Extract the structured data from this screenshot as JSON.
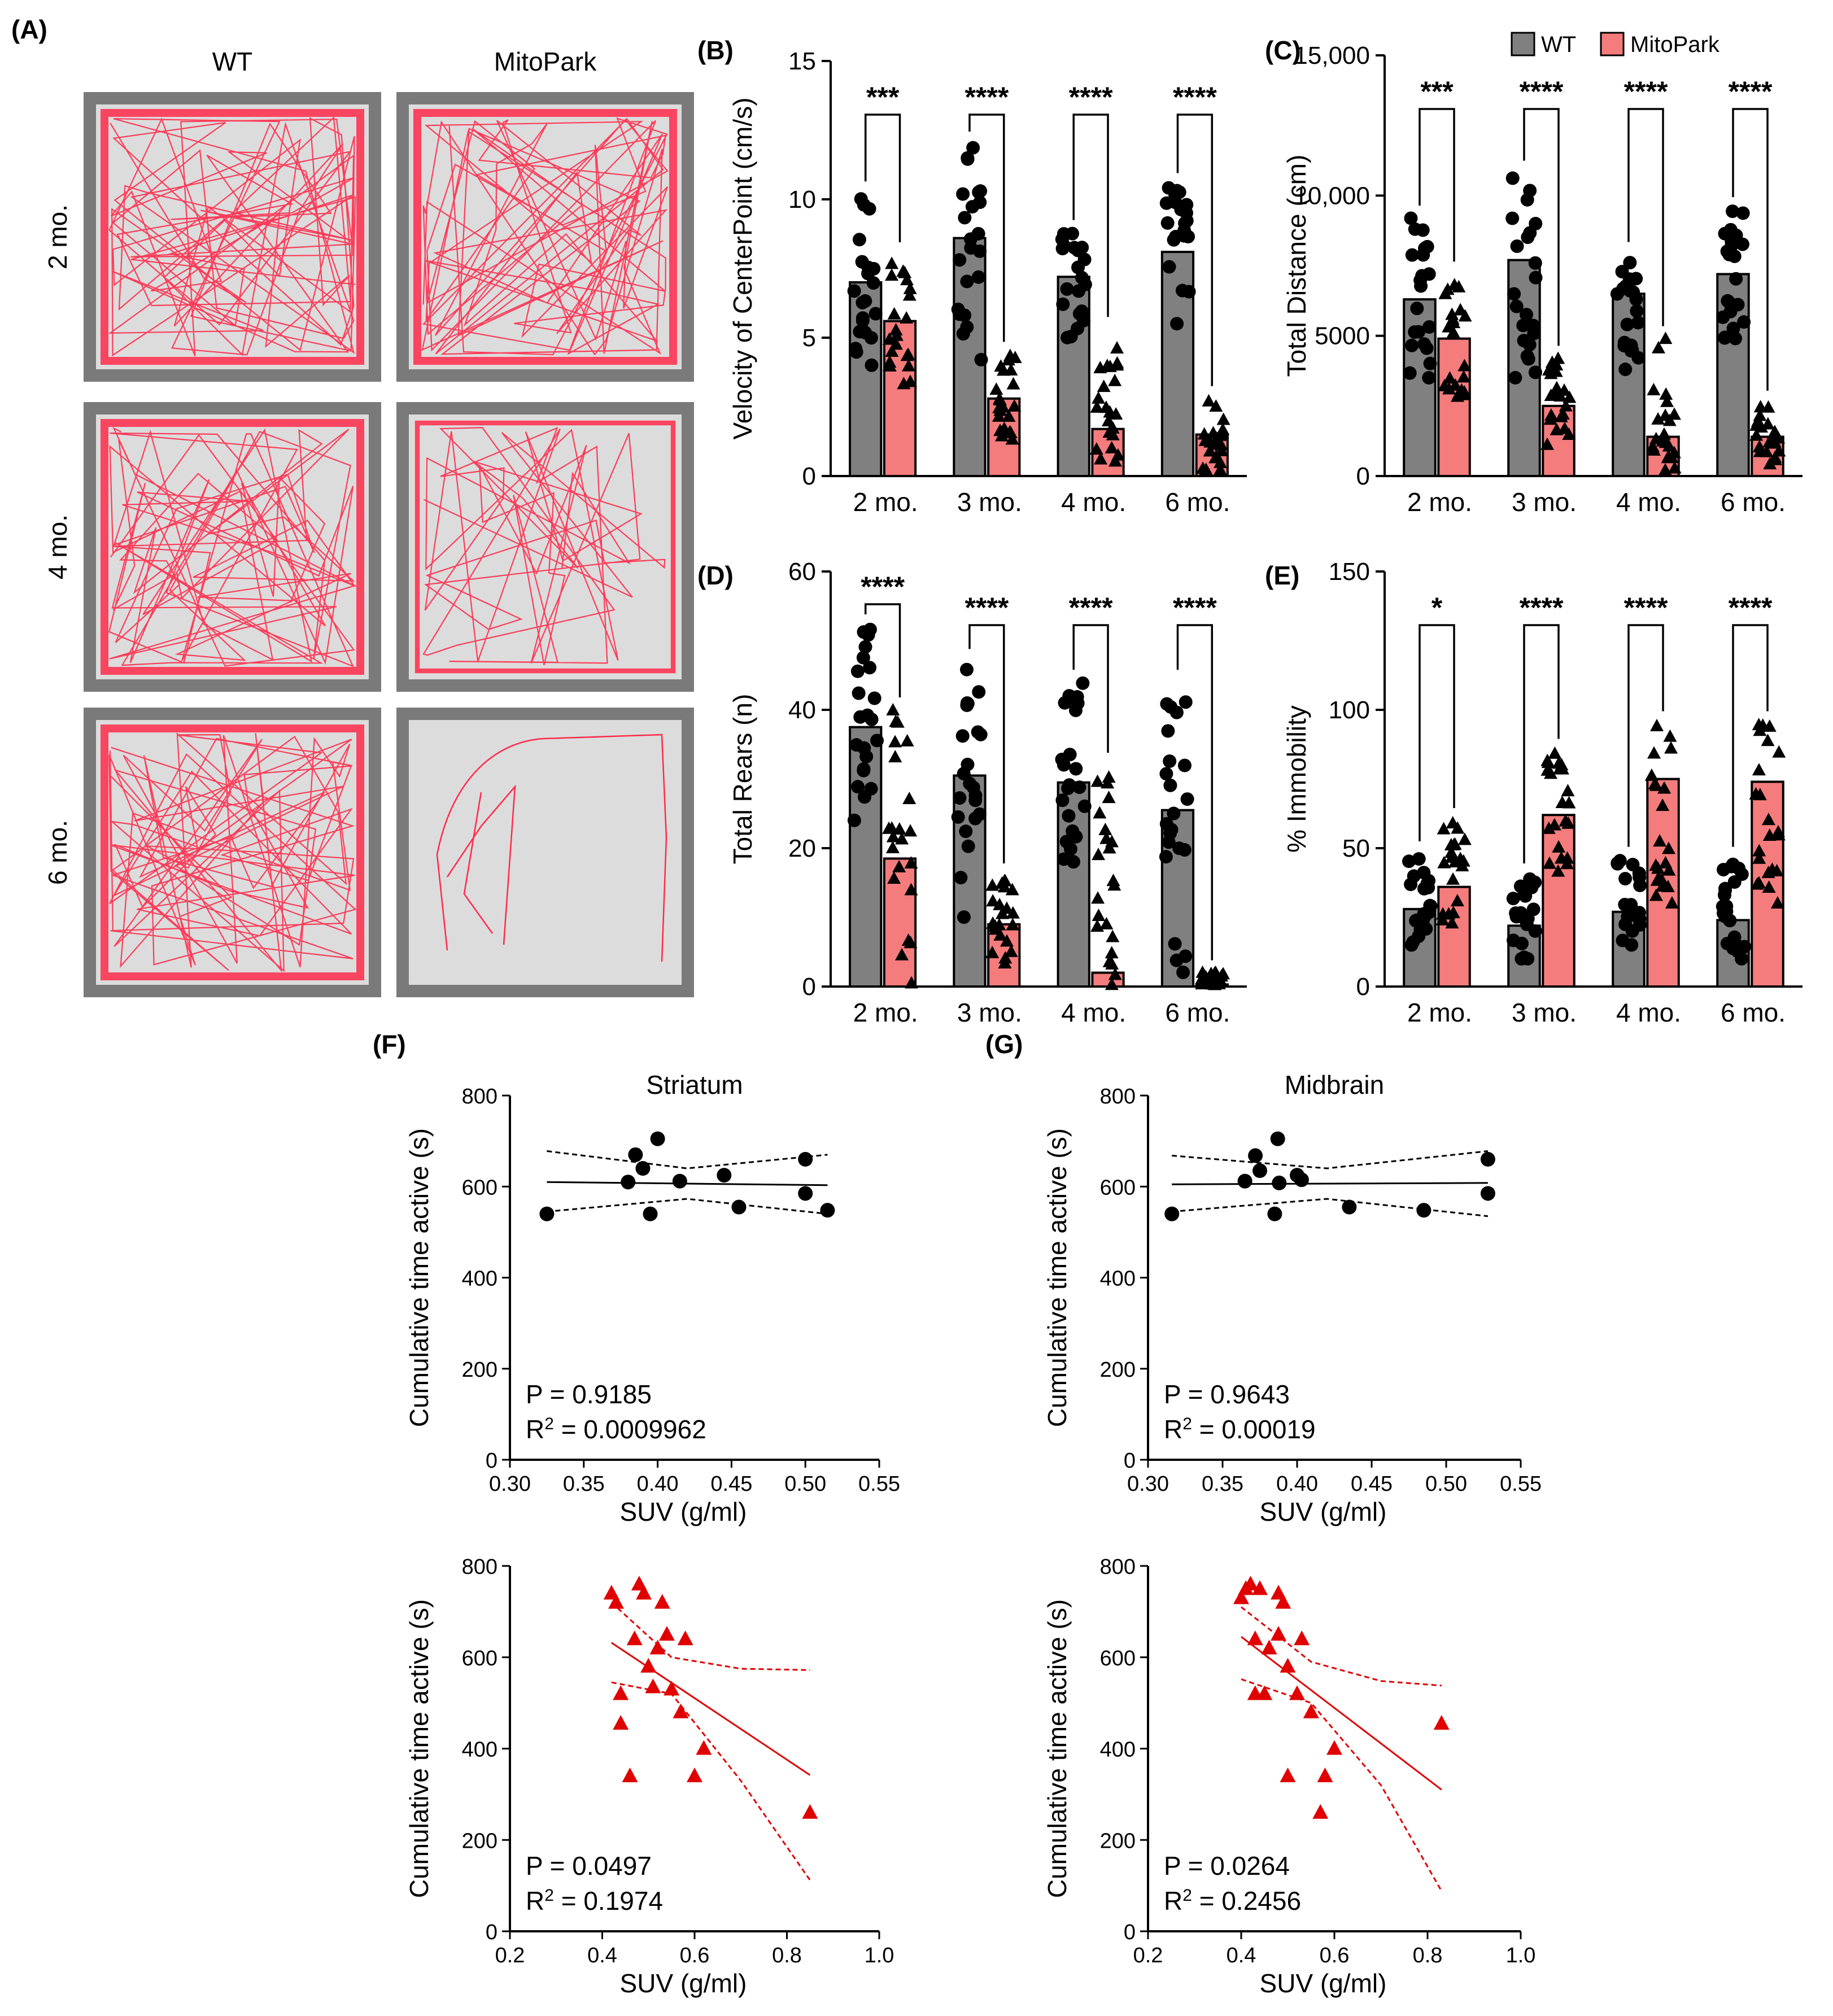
{
  "colors": {
    "wt": "#808080",
    "mitopark": "#f47c7c",
    "mitopark_points": "#e00000",
    "track": "#ff2a4a",
    "arena_floor": "#dcdcdc",
    "arena_wall": "#7a7a7a"
  },
  "legend": {
    "wt": "WT",
    "mitopark": "MitoPark"
  },
  "panel_a": {
    "label": "(A)",
    "columns": [
      "WT",
      "MitoPark"
    ],
    "rows": [
      "2 mo.",
      "4 mo.",
      "6 mo."
    ],
    "track_density": [
      [
        1,
        1
      ],
      [
        1,
        0.6
      ],
      [
        1,
        0.08
      ]
    ]
  },
  "chart_data": [
    {
      "id": "B",
      "type": "bar",
      "label": "(B)",
      "title": "",
      "xlabel": "",
      "ylabel": "Velocity of CenterPoint (cm/s)",
      "categories": [
        "2 mo.",
        "3 mo.",
        "4 mo.",
        "6 mo."
      ],
      "ylim": [
        0,
        15
      ],
      "yticks": [
        {
          "v": 0,
          "t": "0"
        },
        {
          "v": 5,
          "t": "5"
        },
        {
          "v": 10,
          "t": "10"
        },
        {
          "v": 15,
          "t": "15"
        }
      ],
      "series": [
        {
          "name": "WT",
          "values": [
            7.0,
            8.6,
            7.2,
            8.1
          ]
        },
        {
          "name": "MitoPark",
          "values": [
            5.6,
            2.8,
            1.7,
            1.5
          ]
        }
      ],
      "significance": [
        "***",
        "****",
        "****",
        "****"
      ],
      "spread": {
        "WT": [
          [
            4.0,
            10.2
          ],
          [
            4.2,
            12.0
          ],
          [
            5.0,
            8.8
          ],
          [
            5.5,
            10.5
          ]
        ],
        "MitoPark": [
          [
            3.0,
            8.0
          ],
          [
            1.3,
            4.4
          ],
          [
            0.2,
            5.3
          ],
          [
            0.2,
            2.8
          ]
        ]
      },
      "grid": false
    },
    {
      "id": "C",
      "type": "bar",
      "label": "(C)",
      "title": "",
      "xlabel": "",
      "ylabel": "Total Distance (cm)",
      "categories": [
        "2 mo.",
        "3 mo.",
        "4 mo.",
        "6 mo."
      ],
      "ylim": [
        0,
        15000
      ],
      "yticks": [
        {
          "v": 0,
          "t": "0"
        },
        {
          "v": 5000,
          "t": "5000"
        },
        {
          "v": 10000,
          "t": "10,000"
        },
        {
          "v": 15000,
          "t": "15,000"
        }
      ],
      "series": [
        {
          "name": "WT",
          "values": [
            6300,
            7700,
            6500,
            7200
          ]
        },
        {
          "name": "MitoPark",
          "values": [
            4900,
            2500,
            1400,
            1400
          ]
        }
      ],
      "significance": [
        "***",
        "****",
        "****",
        "****"
      ],
      "spread": {
        "WT": [
          [
            3500,
            9200
          ],
          [
            3500,
            10800
          ],
          [
            3800,
            7900
          ],
          [
            4900,
            9500
          ]
        ],
        "MitoPark": [
          [
            2500,
            7200
          ],
          [
            1000,
            4200
          ],
          [
            200,
            4900
          ],
          [
            400,
            2600
          ]
        ]
      },
      "legend_position": "top-right",
      "grid": false
    },
    {
      "id": "D",
      "type": "bar",
      "label": "(D)",
      "title": "",
      "xlabel": "",
      "ylabel": "Total Rears (n)",
      "categories": [
        "2 mo.",
        "3 mo.",
        "4 mo.",
        "6 mo."
      ],
      "ylim": [
        0,
        60
      ],
      "yticks": [
        {
          "v": 0,
          "t": "0"
        },
        {
          "v": 20,
          "t": "20"
        },
        {
          "v": 40,
          "t": "40"
        },
        {
          "v": 60,
          "t": "60"
        }
      ],
      "series": [
        {
          "name": "WT",
          "values": [
            37.5,
            30.5,
            29.5,
            25.5
          ]
        },
        {
          "name": "MitoPark",
          "values": [
            18.5,
            9.0,
            2.0,
            0.3
          ]
        }
      ],
      "significance": [
        "****",
        "****",
        "****",
        "****"
      ],
      "spread": {
        "WT": [
          [
            24,
            52
          ],
          [
            10,
            47
          ],
          [
            18,
            44
          ],
          [
            2,
            44
          ]
        ],
        "MitoPark": [
          [
            0,
            40
          ],
          [
            3,
            16
          ],
          [
            0,
            32
          ],
          [
            0,
            2
          ]
        ]
      },
      "grid": false
    },
    {
      "id": "E",
      "type": "bar",
      "label": "(E)",
      "title": "",
      "xlabel": "",
      "ylabel": "% Immobility",
      "categories": [
        "2 mo.",
        "3 mo.",
        "4 mo.",
        "6 mo."
      ],
      "ylim": [
        0,
        150
      ],
      "yticks": [
        {
          "v": 0,
          "t": "0"
        },
        {
          "v": 50,
          "t": "50"
        },
        {
          "v": 100,
          "t": "100"
        },
        {
          "v": 150,
          "t": "150"
        }
      ],
      "series": [
        {
          "name": "WT",
          "values": [
            28,
            22,
            27,
            24
          ]
        },
        {
          "name": "MitoPark",
          "values": [
            36,
            62,
            75,
            74
          ]
        }
      ],
      "significance": [
        "*",
        "****",
        "****",
        "****"
      ],
      "spread": {
        "WT": [
          [
            15,
            48
          ],
          [
            10,
            40
          ],
          [
            15,
            46
          ],
          [
            10,
            46
          ]
        ],
        "MitoPark": [
          [
            20,
            60
          ],
          [
            40,
            85
          ],
          [
            30,
            95
          ],
          [
            30,
            95
          ]
        ]
      },
      "grid": false
    },
    {
      "id": "F",
      "type": "scatter",
      "label": "(F)",
      "title": "Striatum",
      "xlabel": "SUV (g/ml)",
      "ylabel": "Cumulative time active (s)",
      "xlim": [
        0.3,
        0.55
      ],
      "ylim": [
        0,
        800
      ],
      "xticks": [
        {
          "v": 0.3,
          "t": "0.30"
        },
        {
          "v": 0.35,
          "t": "0.35"
        },
        {
          "v": 0.4,
          "t": "0.40"
        },
        {
          "v": 0.45,
          "t": "0.45"
        },
        {
          "v": 0.5,
          "t": "0.50"
        },
        {
          "v": 0.55,
          "t": "0.55"
        }
      ],
      "yticks": [
        {
          "v": 0,
          "t": "0"
        },
        {
          "v": 200,
          "t": "200"
        },
        {
          "v": 400,
          "t": "400"
        },
        {
          "v": 600,
          "t": "600"
        },
        {
          "v": 800,
          "t": "800"
        }
      ],
      "series": [
        {
          "marker": "circle",
          "color": "#000000",
          "x": [
            0.325,
            0.38,
            0.385,
            0.39,
            0.395,
            0.4,
            0.415,
            0.445,
            0.455,
            0.5,
            0.5,
            0.515
          ],
          "y": [
            540,
            610,
            670,
            640,
            540,
            705,
            612,
            625,
            555,
            585,
            660,
            548
          ]
        }
      ],
      "fit": {
        "x": [
          0.325,
          0.515
        ],
        "y": [
          610,
          603
        ]
      },
      "ci_upper": {
        "x": [
          0.325,
          0.42,
          0.515
        ],
        "y": [
          678,
          640,
          670
        ]
      },
      "ci_lower": {
        "x": [
          0.325,
          0.42,
          0.515
        ],
        "y": [
          545,
          573,
          540
        ]
      },
      "stats": {
        "p": "P = 0.9185",
        "r2_prefix": "R",
        "r2_suffix": " = 0.0009962"
      }
    },
    {
      "id": "G",
      "type": "scatter",
      "label": "(G)",
      "title": "Midbrain",
      "xlabel": "SUV (g/ml)",
      "ylabel": "Cumulative time active (s)",
      "xlim": [
        0.3,
        0.55
      ],
      "ylim": [
        0,
        800
      ],
      "xticks": [
        {
          "v": 0.3,
          "t": "0.30"
        },
        {
          "v": 0.35,
          "t": "0.35"
        },
        {
          "v": 0.4,
          "t": "0.40"
        },
        {
          "v": 0.45,
          "t": "0.45"
        },
        {
          "v": 0.5,
          "t": "0.50"
        },
        {
          "v": 0.55,
          "t": "0.55"
        }
      ],
      "yticks": [
        {
          "v": 0,
          "t": "0"
        },
        {
          "v": 200,
          "t": "200"
        },
        {
          "v": 400,
          "t": "400"
        },
        {
          "v": 600,
          "t": "600"
        },
        {
          "v": 800,
          "t": "800"
        }
      ],
      "series": [
        {
          "marker": "circle",
          "color": "#000000",
          "x": [
            0.316,
            0.365,
            0.372,
            0.375,
            0.385,
            0.387,
            0.388,
            0.4,
            0.403,
            0.435,
            0.485,
            0.528,
            0.528
          ],
          "y": [
            540,
            612,
            668,
            635,
            540,
            705,
            608,
            625,
            615,
            555,
            548,
            585,
            660
          ]
        }
      ],
      "fit": {
        "x": [
          0.316,
          0.528
        ],
        "y": [
          605,
          608
        ]
      },
      "ci_upper": {
        "x": [
          0.316,
          0.42,
          0.528
        ],
        "y": [
          668,
          640,
          678
        ]
      },
      "ci_lower": {
        "x": [
          0.316,
          0.42,
          0.528
        ],
        "y": [
          545,
          573,
          535
        ]
      },
      "stats": {
        "p": "P = 0.9643",
        "r2_prefix": "R",
        "r2_suffix": " = 0.00019"
      }
    },
    {
      "id": "F2",
      "type": "scatter",
      "label": "",
      "title": "",
      "xlabel": "SUV (g/ml)",
      "ylabel": "Cumulative time active (s)",
      "xlim": [
        0.2,
        1.0
      ],
      "ylim": [
        0,
        800
      ],
      "xticks": [
        {
          "v": 0.2,
          "t": "0.2"
        },
        {
          "v": 0.4,
          "t": "0.4"
        },
        {
          "v": 0.6,
          "t": "0.6"
        },
        {
          "v": 0.8,
          "t": "0.8"
        },
        {
          "v": 1.0,
          "t": "1.0"
        }
      ],
      "yticks": [
        {
          "v": 0,
          "t": "0"
        },
        {
          "v": 200,
          "t": "200"
        },
        {
          "v": 400,
          "t": "400"
        },
        {
          "v": 600,
          "t": "600"
        },
        {
          "v": 800,
          "t": "800"
        }
      ],
      "series": [
        {
          "marker": "triangle",
          "color": "#e00000",
          "x": [
            0.42,
            0.43,
            0.44,
            0.46,
            0.47,
            0.48,
            0.49,
            0.5,
            0.51,
            0.52,
            0.53,
            0.54,
            0.55,
            0.57,
            0.58,
            0.6,
            0.62,
            0.85,
            0.44
          ],
          "y": [
            740,
            720,
            520,
            340,
            640,
            760,
            740,
            580,
            535,
            620,
            720,
            650,
            530,
            480,
            640,
            340,
            400,
            260,
            455
          ]
        }
      ],
      "fit": {
        "x": [
          0.42,
          0.85
        ],
        "y": [
          632,
          342
        ]
      },
      "ci_upper": {
        "x": [
          0.42,
          0.55,
          0.7,
          0.85
        ],
        "y": [
          720,
          600,
          575,
          572
        ]
      },
      "ci_lower": {
        "x": [
          0.42,
          0.55,
          0.7,
          0.85
        ],
        "y": [
          545,
          520,
          330,
          112
        ]
      },
      "stats": {
        "p": "P = 0.0497",
        "r2_prefix": "R",
        "r2_suffix": " = 0.1974"
      }
    },
    {
      "id": "G2",
      "type": "scatter",
      "label": "",
      "title": "",
      "xlabel": "SUV (g/ml)",
      "ylabel": "Cumulative time active (s)",
      "xlim": [
        0.2,
        1.0
      ],
      "ylim": [
        0,
        800
      ],
      "xticks": [
        {
          "v": 0.2,
          "t": "0.2"
        },
        {
          "v": 0.4,
          "t": "0.4"
        },
        {
          "v": 0.6,
          "t": "0.6"
        },
        {
          "v": 0.8,
          "t": "0.8"
        },
        {
          "v": 1.0,
          "t": "1.0"
        }
      ],
      "yticks": [
        {
          "v": 0,
          "t": "0"
        },
        {
          "v": 200,
          "t": "200"
        },
        {
          "v": 400,
          "t": "400"
        },
        {
          "v": 600,
          "t": "600"
        },
        {
          "v": 800,
          "t": "800"
        }
      ],
      "series": [
        {
          "marker": "triangle",
          "color": "#e00000",
          "x": [
            0.4,
            0.41,
            0.42,
            0.43,
            0.43,
            0.44,
            0.45,
            0.46,
            0.48,
            0.48,
            0.49,
            0.5,
            0.5,
            0.52,
            0.53,
            0.55,
            0.57,
            0.58,
            0.6,
            0.83
          ],
          "y": [
            730,
            750,
            760,
            520,
            640,
            750,
            520,
            620,
            740,
            650,
            720,
            340,
            580,
            520,
            640,
            480,
            260,
            340,
            400,
            455
          ]
        }
      ],
      "fit": {
        "x": [
          0.4,
          0.83
        ],
        "y": [
          645,
          310
        ]
      },
      "ci_upper": {
        "x": [
          0.4,
          0.55,
          0.7,
          0.83
        ],
        "y": [
          710,
          590,
          548,
          538
        ]
      },
      "ci_lower": {
        "x": [
          0.4,
          0.55,
          0.7,
          0.83
        ],
        "y": [
          552,
          500,
          320,
          88
        ]
      },
      "stats": {
        "p": "P = 0.0264",
        "r2_prefix": "R",
        "r2_suffix": " = 0.2456"
      }
    }
  ]
}
